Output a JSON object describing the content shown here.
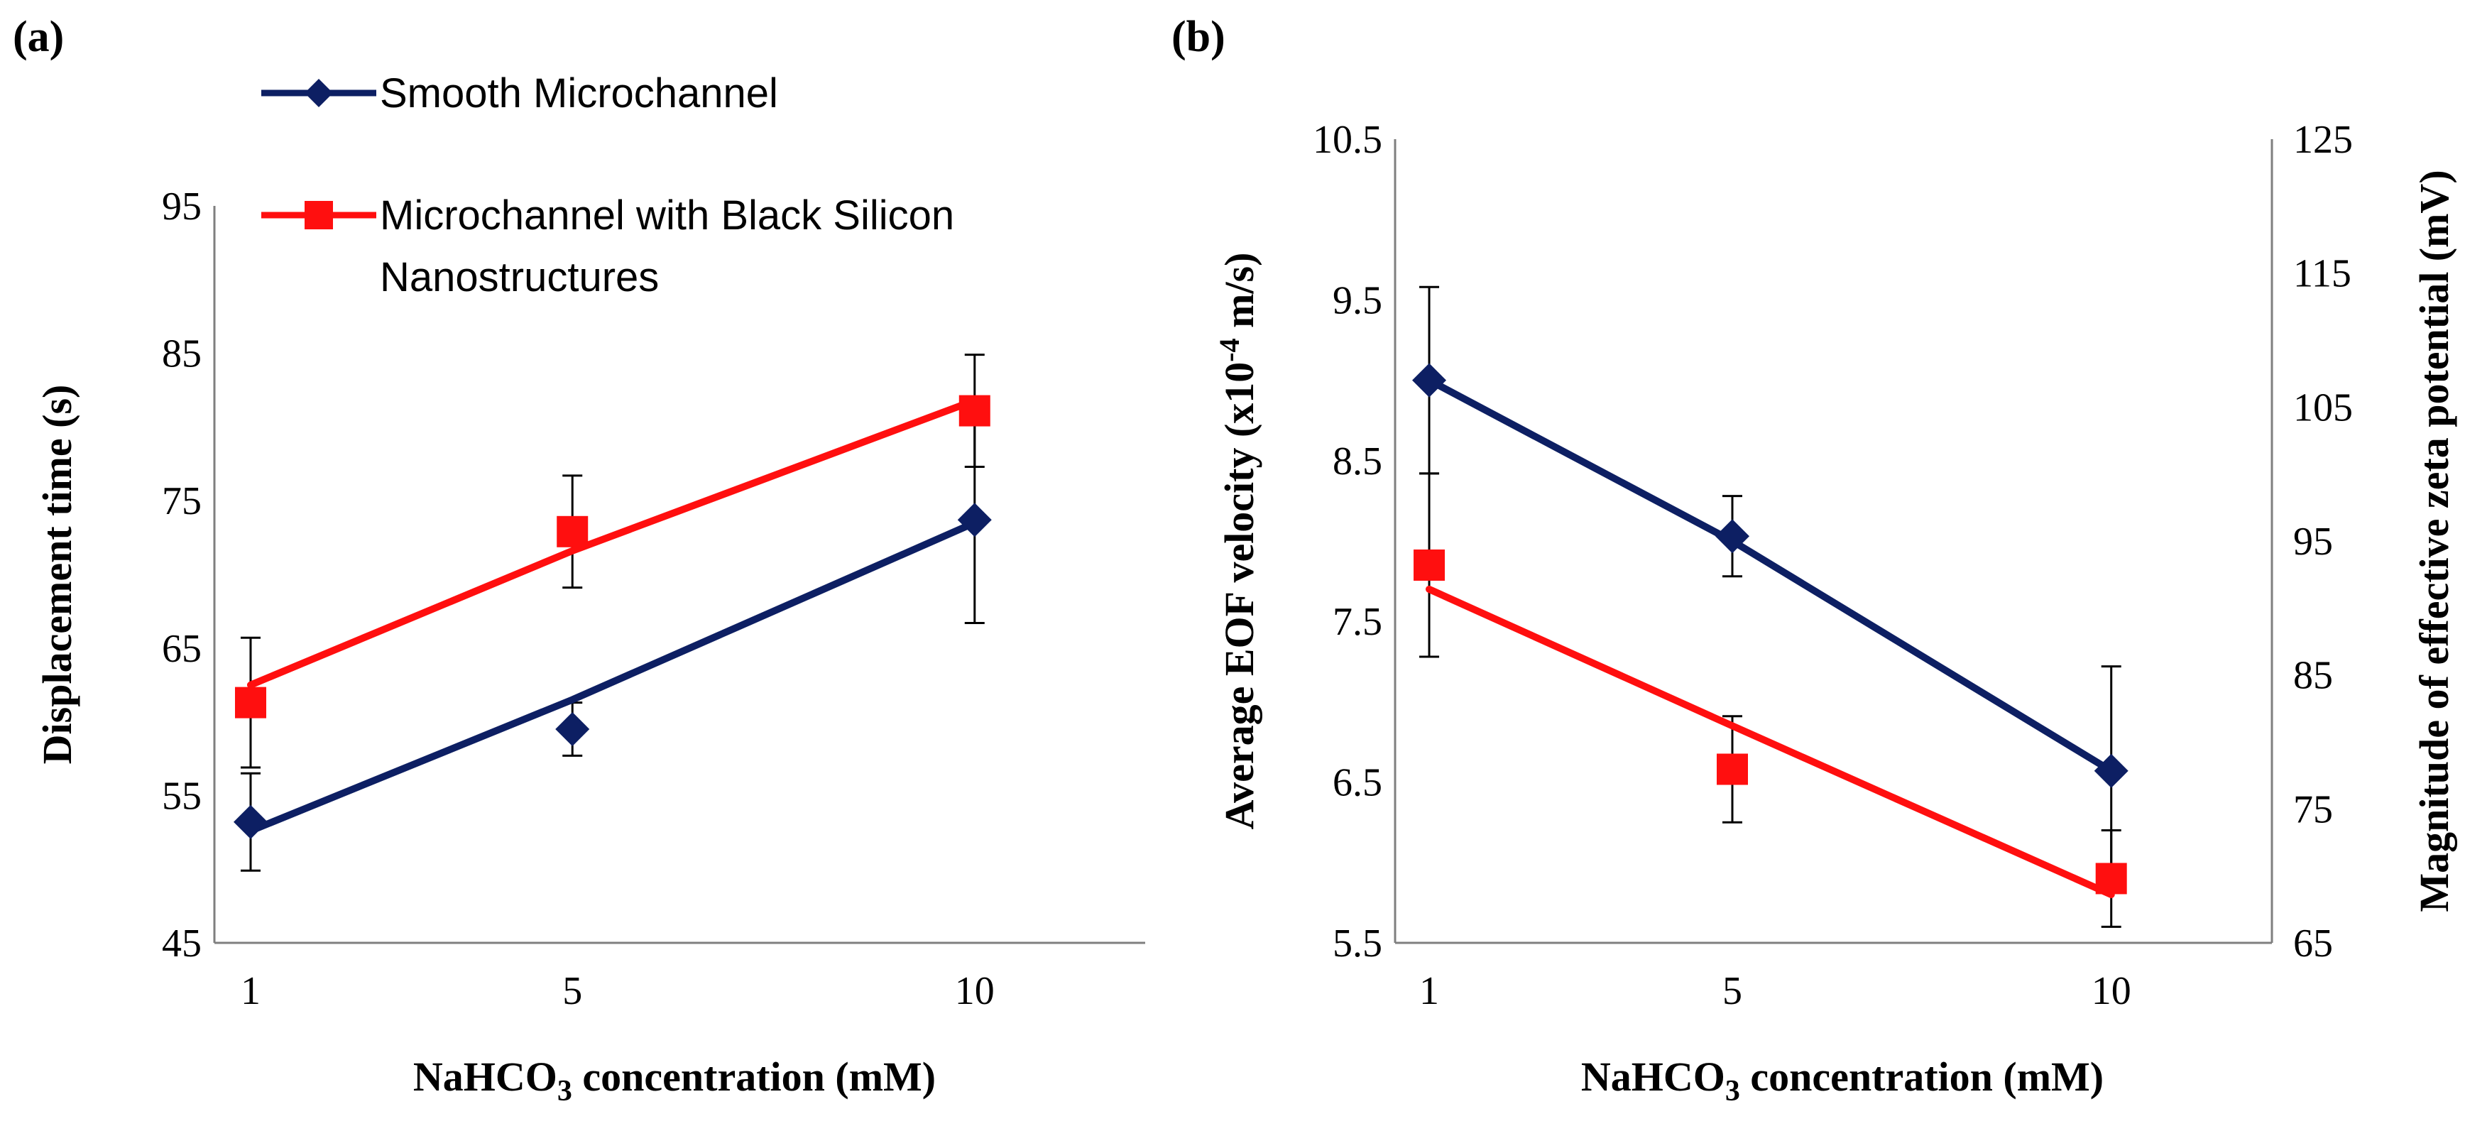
{
  "colors": {
    "smooth": "#0d1f63",
    "black_silicon": "#ff0f0f",
    "axis": "#7f7f7f",
    "error_bar": "#000000"
  },
  "legend": {
    "smooth": "Smooth Microchannel",
    "black_silicon_line1": "Microchannel with Black Silicon",
    "black_silicon_line2": "Nanostructures"
  },
  "chart_data": [
    {
      "panel": "(a)",
      "type": "line",
      "title": "",
      "xlabel": "NaHCO",
      "xlabel_sub": "3",
      "xlabel_rest": " concentration (mM)",
      "ylabel": "Displacement time (s)",
      "categories": [
        "1",
        "5",
        "10"
      ],
      "x": [
        1,
        5,
        10
      ],
      "xlim": [
        0.55,
        12.12
      ],
      "ylim": [
        45,
        95
      ],
      "yticks": [
        45,
        55,
        65,
        75,
        85,
        95
      ],
      "grid": false,
      "series": [
        {
          "name": "Smooth Microchannel",
          "marker": "diamond",
          "values": [
            53.2,
            59.5,
            73.7
          ],
          "errors": [
            3.3,
            1.8,
            7.0
          ],
          "trend": [
            52.6,
            61.5,
            73.5
          ]
        },
        {
          "name": "Microchannel with Black Silicon Nanostructures",
          "marker": "square",
          "values": [
            61.3,
            72.9,
            81.1
          ],
          "errors": [
            4.4,
            3.8,
            3.8
          ],
          "trend": [
            62.5,
            71.6,
            81.8
          ]
        }
      ]
    },
    {
      "panel": "(b)",
      "type": "line",
      "title": "",
      "xlabel": "NaHCO",
      "xlabel_sub": "3",
      "xlabel_rest": " concentration (mM)",
      "ylabel": "Average EOF velocity (x10",
      "ylabel_sup": "-4",
      "ylabel_rest": " m/s)",
      "y2label": "Magnitude of effective zeta potential (mV)",
      "categories": [
        "1",
        "5",
        "10"
      ],
      "x": [
        1,
        5,
        10
      ],
      "xlim": [
        0.55,
        12.12
      ],
      "ylim": [
        5.5,
        10.5
      ],
      "yticks": [
        5.5,
        6.5,
        7.5,
        8.5,
        9.5,
        10.5
      ],
      "ytick_labels": [
        "5.5",
        "6.5",
        "7.5",
        "8.5",
        "9.5",
        "10.5"
      ],
      "y2lim": [
        65,
        125
      ],
      "y2ticks": [
        65,
        75,
        85,
        95,
        105,
        115,
        125
      ],
      "grid": false,
      "series": [
        {
          "name": "Smooth Microchannel",
          "marker": "diamond",
          "values": [
            9.0,
            8.03,
            6.57
          ],
          "errors": [
            0.58,
            0.25,
            0.65
          ],
          "trend": [
            9.0,
            8.0,
            6.57
          ]
        },
        {
          "name": "Microchannel with Black Silicon Nanostructures",
          "marker": "square",
          "values": [
            7.85,
            6.58,
            5.9
          ],
          "errors": [
            0.57,
            0.33,
            0.3
          ],
          "trend": [
            7.7,
            6.85,
            5.8
          ]
        }
      ]
    }
  ]
}
